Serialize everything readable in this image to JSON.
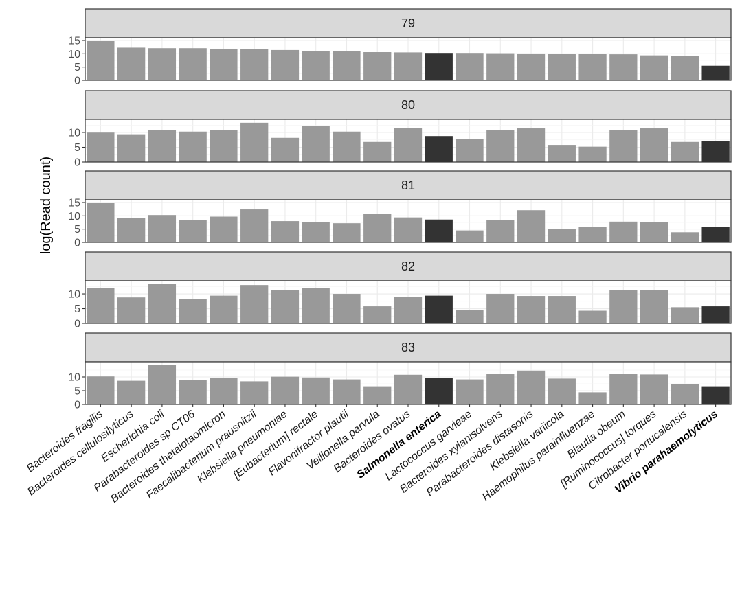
{
  "chart_data": {
    "type": "bar",
    "ylabel": "log(Read count)",
    "xlabel": "",
    "highlight_color": "#333333",
    "bar_color": "#999999",
    "grid": true,
    "categories": [
      "Bacteroides fragilis",
      "Bacteroides cellulosilyticus",
      "Escherichia coli",
      "Parabacteroides sp CT06",
      "Bacteroides thetaiotaomicron",
      "Faecalibacterium prausnitzii",
      "Klebsiella pneumoniae",
      "[Eubacterium] rectale",
      "Flavonifractor plautii",
      "Veillonella parvula",
      "Bacteroides ovatus",
      "Salmonella enterica",
      "Lactococcus garvieae",
      "Bacteroides xylanisolvens",
      "Parabacteroides distasonis",
      "Klebsiella variicola",
      "Haemophilus parainfluenzae",
      "Blautia obeum",
      "[Ruminococcus] torques",
      "Citrobacter portucalensis",
      "Vibrio parahaemolyticus"
    ],
    "highlighted_categories": [
      "Salmonella enterica",
      "Vibrio parahaemolyticus"
    ],
    "panels": [
      {
        "label": "79",
        "ylim": [
          0,
          15
        ],
        "yticks": [
          "0",
          "5",
          "10",
          "15"
        ],
        "values": [
          14.8,
          12.3,
          12.1,
          12.1,
          11.9,
          11.7,
          11.4,
          11.1,
          11.0,
          10.6,
          10.5,
          10.3,
          10.3,
          10.2,
          10.1,
          10.0,
          9.9,
          9.8,
          9.4,
          9.3,
          5.5
        ]
      },
      {
        "label": "80",
        "ylim": [
          0,
          13.5
        ],
        "yticks": [
          "0",
          "5",
          "10"
        ],
        "values": [
          10.2,
          9.4,
          10.8,
          10.3,
          10.8,
          13.3,
          8.2,
          12.3,
          10.3,
          6.8,
          11.6,
          8.8,
          7.7,
          10.8,
          11.4,
          5.8,
          5.2,
          10.8,
          11.4,
          6.8,
          7.0
        ]
      },
      {
        "label": "81",
        "ylim": [
          0,
          15
        ],
        "yticks": [
          "0",
          "5",
          "10",
          "15"
        ],
        "values": [
          14.8,
          9.2,
          10.3,
          8.3,
          9.7,
          12.4,
          8.0,
          7.7,
          7.2,
          10.7,
          9.4,
          8.6,
          4.5,
          8.3,
          12.1,
          5.0,
          5.8,
          7.8,
          7.6,
          3.8,
          5.7
        ]
      },
      {
        "label": "82",
        "ylim": [
          0,
          13.5
        ],
        "yticks": [
          "0",
          "5",
          "10"
        ],
        "values": [
          11.9,
          8.8,
          13.5,
          8.2,
          9.4,
          13.0,
          11.3,
          12.0,
          10.0,
          5.8,
          9.0,
          9.4,
          4.6,
          10.0,
          9.3,
          9.3,
          4.3,
          11.3,
          11.2,
          5.5,
          5.8
        ]
      },
      {
        "label": "83",
        "ylim": [
          0,
          14.5
        ],
        "yticks": [
          "0",
          "5",
          "10"
        ],
        "values": [
          10.2,
          8.6,
          14.5,
          9.0,
          9.5,
          8.4,
          10.1,
          9.8,
          9.1,
          6.6,
          10.8,
          9.5,
          9.1,
          11.0,
          12.3,
          9.4,
          4.4,
          11.0,
          10.9,
          7.3,
          6.6
        ]
      }
    ]
  }
}
